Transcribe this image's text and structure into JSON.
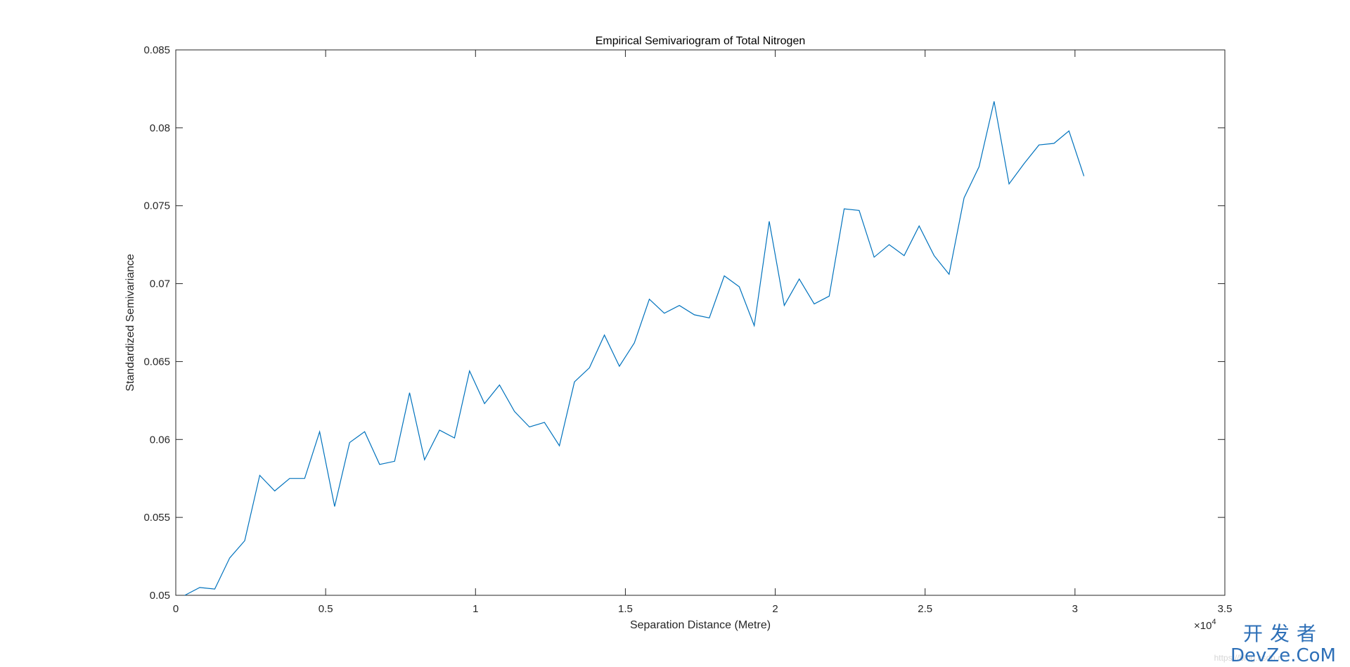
{
  "chart_data": {
    "type": "line",
    "title": "Empirical Semivariogram of Total Nitrogen",
    "xlabel": "Separation Distance (Metre)",
    "ylabel": "Standardized Semivariance",
    "xlim": [
      0,
      35000
    ],
    "ylim": [
      0.05,
      0.085
    ],
    "x_ticks": [
      0,
      5000,
      10000,
      15000,
      20000,
      25000,
      30000,
      35000
    ],
    "x_tick_labels": [
      "0",
      "0.5",
      "1",
      "1.5",
      "2",
      "2.5",
      "3",
      "3.5"
    ],
    "x_exponent_label": "×10",
    "x_exponent_power": "4",
    "y_ticks": [
      0.05,
      0.055,
      0.06,
      0.065,
      0.07,
      0.075,
      0.08,
      0.085
    ],
    "y_tick_labels": [
      "0.05",
      "0.055",
      "0.06",
      "0.065",
      "0.07",
      "0.075",
      "0.08",
      "0.085"
    ],
    "grid": false,
    "line_color": "#0072BD",
    "series": [
      {
        "x": [
          300,
          800,
          1300,
          1800,
          2300,
          2800,
          3300,
          3800,
          4300,
          4800,
          5300,
          5800,
          6300,
          6800,
          7300,
          7800,
          8300,
          8800,
          9300,
          9800,
          10300,
          10800,
          11300,
          11800,
          12300,
          12800,
          13300,
          13800,
          14300,
          14800,
          15300,
          15800,
          16300,
          16800,
          17300,
          17800,
          18300,
          18800,
          19300,
          19800,
          20300,
          20800,
          21300,
          21800,
          22300,
          22800,
          23300,
          23800,
          24300,
          24800,
          25300,
          25800,
          26300,
          26800,
          27300,
          27800,
          28300,
          28800,
          29300,
          29800,
          30300
        ],
        "values": [
          0.05,
          0.0505,
          0.0504,
          0.0524,
          0.0535,
          0.0577,
          0.0567,
          0.0575,
          0.0575,
          0.0605,
          0.0557,
          0.0598,
          0.0605,
          0.0584,
          0.0586,
          0.063,
          0.0587,
          0.0606,
          0.0601,
          0.0644,
          0.0623,
          0.0635,
          0.0618,
          0.0608,
          0.0611,
          0.0596,
          0.0637,
          0.0646,
          0.0667,
          0.0647,
          0.0662,
          0.069,
          0.0681,
          0.0686,
          0.068,
          0.0678,
          0.0705,
          0.0698,
          0.0673,
          0.074,
          0.0686,
          0.0703,
          0.0687,
          0.0692,
          0.0748,
          0.0747,
          0.0717,
          0.0725,
          0.0718,
          0.0737,
          0.0718,
          0.0706,
          0.0755,
          0.0775,
          0.0817,
          0.0764,
          0.0777,
          0.0789,
          0.079,
          0.0798,
          0.0769
        ]
      }
    ]
  },
  "watermark": {
    "brand_cn": "开发者",
    "brand_en": "DevZe.CoM",
    "url": "https://blog.csdn.n",
    "color": "#2d6fb7"
  }
}
